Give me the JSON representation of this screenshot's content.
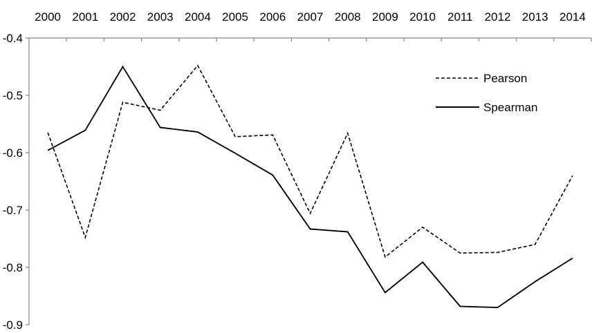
{
  "chart_data": {
    "type": "line",
    "title": "",
    "xlabel": "",
    "ylabel": "",
    "x": [
      "2000",
      "2001",
      "2002",
      "2003",
      "2004",
      "2005",
      "2006",
      "2007",
      "2008",
      "2009",
      "2010",
      "2011",
      "2012",
      "2013",
      "2014"
    ],
    "ylim": [
      -0.9,
      -0.4
    ],
    "yticks": [
      "-0.4",
      "-0.5",
      "-0.6",
      "-0.7",
      "-0.8",
      "-0.9"
    ],
    "x_axis_position": "top",
    "grid": false,
    "legend_position": "top-right",
    "series": [
      {
        "name": "Pearson",
        "style": "dashed",
        "color": "#000000",
        "values": [
          -0.565,
          -0.748,
          -0.512,
          -0.526,
          -0.448,
          -0.572,
          -0.569,
          -0.706,
          -0.566,
          -0.782,
          -0.73,
          -0.775,
          -0.774,
          -0.76,
          -0.64
        ]
      },
      {
        "name": "Spearman",
        "style": "solid",
        "color": "#000000",
        "values": [
          -0.596,
          -0.561,
          -0.45,
          -0.556,
          -0.564,
          -0.601,
          -0.639,
          -0.733,
          -0.738,
          -0.844,
          -0.791,
          -0.868,
          -0.87,
          -0.825,
          -0.784
        ]
      }
    ]
  }
}
